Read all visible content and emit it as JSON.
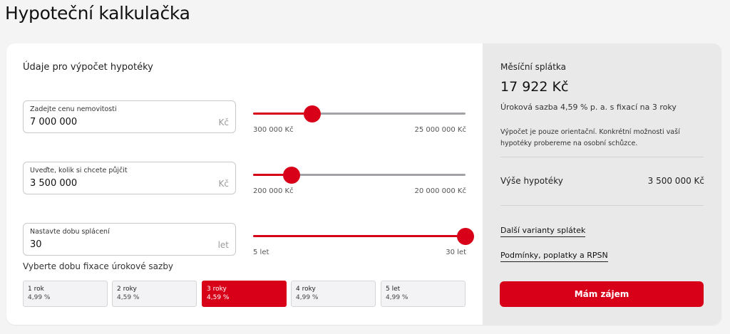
{
  "page": {
    "title": "Hypoteční kalkulačka"
  },
  "form": {
    "title": "Údaje pro výpočet hypotéky",
    "fields": [
      {
        "label": "Zadejte cenu nemovitosti",
        "value": "7 000 000",
        "unit": "Kč",
        "slider_min": "300 000 Kč",
        "slider_max": "25 000 000 Kč",
        "slider_fraction": 0.28
      },
      {
        "label": "Uveďte, kolik si chcete půjčit",
        "value": "3 500 000",
        "unit": "Kč",
        "slider_min": "200 000 Kč",
        "slider_max": "20 000 000 Kč",
        "slider_fraction": 0.18
      },
      {
        "label": "Nastavte dobu splácení",
        "value": "30",
        "unit": "let",
        "slider_min": "5 let",
        "slider_max": "30 let",
        "slider_fraction": 1.0
      }
    ],
    "fixation": {
      "title": "Vyberte dobu fixace úrokové sazby",
      "selected_index": 2,
      "options": [
        {
          "label": "1 rok",
          "rate": "4,99 %"
        },
        {
          "label": "2 roky",
          "rate": "4,59 %"
        },
        {
          "label": "3 roky",
          "rate": "4,59 %"
        },
        {
          "label": "4 roky",
          "rate": "4,99 %"
        },
        {
          "label": "5 let",
          "rate": "4,99 %"
        }
      ]
    }
  },
  "result": {
    "title": "Měsíční splátka",
    "amount": "17 922 Kč",
    "rate_text": "Úroková sazba 4,59 % p. a. s fixací na 3 roky",
    "note": "Výpočet je pouze orientační. Konkrétní možnosti vaší hypotéky probereme na osobní schůzce.",
    "total_label": "Výše hypotéky",
    "total_value": "3 500 000 Kč",
    "links": [
      "Další varianty splátek",
      "Podmínky, poplatky a RPSN"
    ],
    "cta_label": "Mám zájem"
  },
  "colors": {
    "accent": "#d80018",
    "panel": "#e9e9ea",
    "background": "#f4f4f5"
  }
}
